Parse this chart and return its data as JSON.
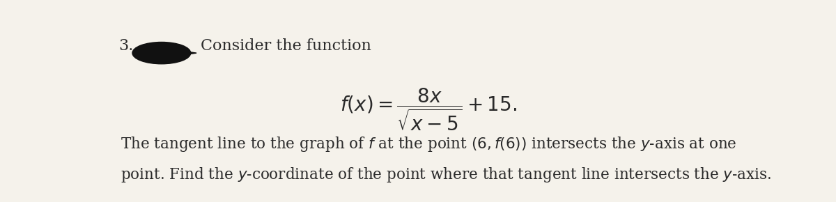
{
  "number": "3.",
  "intro_text": "Consider the function",
  "formula_latex": "$f(x) = \\dfrac{8x}{\\sqrt{x-5}} + 15.$",
  "body_line1": "The tangent line to the graph of $f$ at the point $(6, f(6))$ intersects the $y$-axis at one",
  "body_line2": "point. Find the $y$-coordinate of the point where that tangent line intersects the $y$-axis.",
  "background_color": "#f5f2eb",
  "text_color": "#2a2a2a",
  "redact_color": "#111111",
  "font_size_header": 16,
  "font_size_formula": 20,
  "font_size_body": 15.5,
  "fig_width": 12.0,
  "fig_height": 2.9
}
